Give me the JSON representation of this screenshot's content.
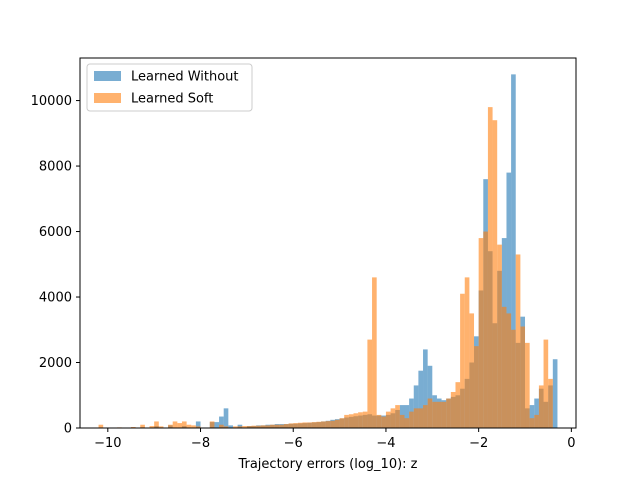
{
  "chart_data": {
    "type": "histogram",
    "xlabel": "Trajectory errors (log_10): z",
    "ylabel": "",
    "xlim": [
      -10.6,
      0.1
    ],
    "ylim": [
      0,
      11300
    ],
    "xticks": [
      -10,
      -8,
      -6,
      -4,
      -2,
      0
    ],
    "xtick_labels": [
      "−10",
      "−8",
      "−6",
      "−4",
      "−2",
      "0"
    ],
    "yticks": [
      0,
      2000,
      4000,
      6000,
      8000,
      10000
    ],
    "ytick_labels": [
      "0",
      "2000",
      "4000",
      "6000",
      "8000",
      "10000"
    ],
    "bin_width": 0.1,
    "legend": {
      "position": "upper-left"
    },
    "series": [
      {
        "name": "Learned Without",
        "color": "#1f77b4",
        "alpha": 0.6,
        "bins": [
          [
            -9.3,
            20
          ],
          [
            -9.0,
            60
          ],
          [
            -8.7,
            80
          ],
          [
            -8.4,
            60
          ],
          [
            -8.1,
            200
          ],
          [
            -7.8,
            180
          ],
          [
            -7.7,
            180
          ],
          [
            -7.6,
            350
          ],
          [
            -7.5,
            600
          ],
          [
            -7.4,
            80
          ],
          [
            -7.2,
            100
          ],
          [
            -7.0,
            60
          ],
          [
            -6.9,
            60
          ],
          [
            -6.8,
            80
          ],
          [
            -6.7,
            80
          ],
          [
            -6.6,
            100
          ],
          [
            -6.5,
            100
          ],
          [
            -6.4,
            120
          ],
          [
            -6.3,
            120
          ],
          [
            -6.2,
            120
          ],
          [
            -6.1,
            130
          ],
          [
            -6.0,
            130
          ],
          [
            -5.9,
            140
          ],
          [
            -5.8,
            150
          ],
          [
            -5.7,
            160
          ],
          [
            -5.6,
            170
          ],
          [
            -5.5,
            180
          ],
          [
            -5.4,
            200
          ],
          [
            -5.3,
            220
          ],
          [
            -5.2,
            250
          ],
          [
            -5.1,
            270
          ],
          [
            -5.0,
            290
          ],
          [
            -4.9,
            320
          ],
          [
            -4.8,
            340
          ],
          [
            -4.7,
            360
          ],
          [
            -4.6,
            380
          ],
          [
            -4.5,
            400
          ],
          [
            -4.4,
            420
          ],
          [
            -4.3,
            380
          ],
          [
            -4.2,
            380
          ],
          [
            -4.1,
            380
          ],
          [
            -4.0,
            400
          ],
          [
            -3.9,
            450
          ],
          [
            -3.8,
            550
          ],
          [
            -3.7,
            700
          ],
          [
            -3.6,
            700
          ],
          [
            -3.5,
            900
          ],
          [
            -3.4,
            1300
          ],
          [
            -3.3,
            1750
          ],
          [
            -3.2,
            2400
          ],
          [
            -3.1,
            1900
          ],
          [
            -3.0,
            1000
          ],
          [
            -2.9,
            900
          ],
          [
            -2.8,
            850
          ],
          [
            -2.7,
            900
          ],
          [
            -2.6,
            950
          ],
          [
            -2.5,
            1000
          ],
          [
            -2.4,
            1200
          ],
          [
            -2.3,
            1500
          ],
          [
            -2.2,
            2000
          ],
          [
            -2.1,
            2800
          ],
          [
            -2.0,
            4200
          ],
          [
            -1.9,
            7600
          ],
          [
            -1.8,
            5400
          ],
          [
            -1.7,
            3200
          ],
          [
            -1.6,
            4800
          ],
          [
            -1.5,
            5800
          ],
          [
            -1.4,
            7800
          ],
          [
            -1.3,
            10800
          ],
          [
            -1.2,
            2600
          ],
          [
            -1.1,
            3400
          ],
          [
            -1.0,
            600
          ],
          [
            -0.9,
            700
          ],
          [
            -0.8,
            900
          ],
          [
            -0.7,
            1200
          ],
          [
            -0.6,
            800
          ],
          [
            -0.5,
            1300
          ],
          [
            -0.4,
            2100
          ]
        ]
      },
      {
        "name": "Learned Soft",
        "color": "#ff7f0e",
        "alpha": 0.6,
        "bins": [
          [
            -10.2,
            100
          ],
          [
            -9.8,
            20
          ],
          [
            -9.5,
            30
          ],
          [
            -9.3,
            100
          ],
          [
            -9.1,
            60
          ],
          [
            -9.0,
            200
          ],
          [
            -8.9,
            50
          ],
          [
            -8.7,
            100
          ],
          [
            -8.6,
            200
          ],
          [
            -8.5,
            150
          ],
          [
            -8.4,
            200
          ],
          [
            -8.3,
            100
          ],
          [
            -8.2,
            80
          ],
          [
            -8.1,
            50
          ],
          [
            -7.8,
            200
          ],
          [
            -7.6,
            100
          ],
          [
            -7.5,
            50
          ],
          [
            -7.3,
            50
          ],
          [
            -7.2,
            50
          ],
          [
            -7.1,
            60
          ],
          [
            -7.0,
            60
          ],
          [
            -6.9,
            70
          ],
          [
            -6.8,
            70
          ],
          [
            -6.7,
            80
          ],
          [
            -6.6,
            80
          ],
          [
            -6.5,
            100
          ],
          [
            -6.4,
            100
          ],
          [
            -6.3,
            100
          ],
          [
            -6.2,
            120
          ],
          [
            -6.1,
            140
          ],
          [
            -6.0,
            150
          ],
          [
            -5.9,
            160
          ],
          [
            -5.8,
            170
          ],
          [
            -5.7,
            170
          ],
          [
            -5.6,
            180
          ],
          [
            -5.5,
            190
          ],
          [
            -5.4,
            200
          ],
          [
            -5.3,
            210
          ],
          [
            -5.2,
            220
          ],
          [
            -5.1,
            250
          ],
          [
            -5.0,
            300
          ],
          [
            -4.9,
            400
          ],
          [
            -4.8,
            420
          ],
          [
            -4.7,
            450
          ],
          [
            -4.6,
            480
          ],
          [
            -4.5,
            500
          ],
          [
            -4.4,
            2700
          ],
          [
            -4.3,
            4600
          ],
          [
            -4.2,
            400
          ],
          [
            -4.1,
            350
          ],
          [
            -4.0,
            500
          ],
          [
            -3.9,
            600
          ],
          [
            -3.8,
            700
          ],
          [
            -3.7,
            400
          ],
          [
            -3.6,
            300
          ],
          [
            -3.5,
            500
          ],
          [
            -3.4,
            600
          ],
          [
            -3.3,
            600
          ],
          [
            -3.2,
            700
          ],
          [
            -3.1,
            900
          ],
          [
            -3.0,
            800
          ],
          [
            -2.9,
            800
          ],
          [
            -2.8,
            800
          ],
          [
            -2.7,
            900
          ],
          [
            -2.6,
            1100
          ],
          [
            -2.5,
            1400
          ],
          [
            -2.4,
            4100
          ],
          [
            -2.3,
            4600
          ],
          [
            -2.2,
            3500
          ],
          [
            -2.1,
            2500
          ],
          [
            -2.0,
            5800
          ],
          [
            -1.9,
            6000
          ],
          [
            -1.8,
            9800
          ],
          [
            -1.7,
            9400
          ],
          [
            -1.6,
            5600
          ],
          [
            -1.5,
            3700
          ],
          [
            -1.4,
            3500
          ],
          [
            -1.3,
            3000
          ],
          [
            -1.2,
            5300
          ],
          [
            -1.1,
            3100
          ],
          [
            -1.0,
            2600
          ],
          [
            -0.9,
            300
          ],
          [
            -0.8,
            400
          ],
          [
            -0.7,
            1300
          ],
          [
            -0.6,
            2700
          ],
          [
            -0.5,
            1500
          ]
        ]
      }
    ]
  }
}
